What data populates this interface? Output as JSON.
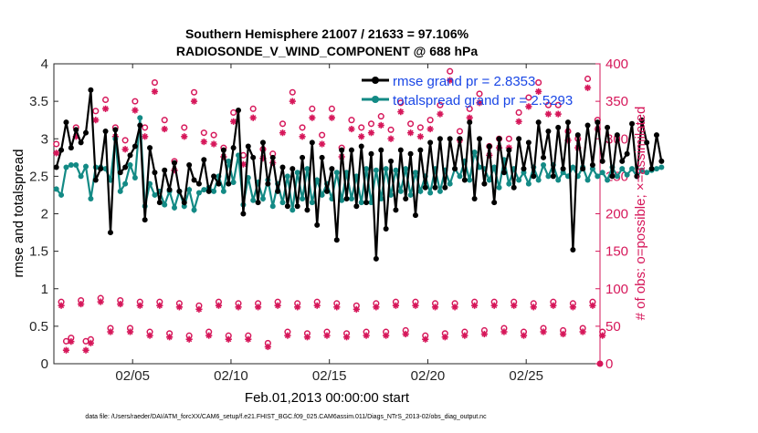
{
  "chart_data": {
    "type": "line",
    "title_line1": "Southern Hemisphere 21007 / 21633 = 97.106%",
    "title_line2": "RADIOSONDE_V_WIND_COMPONENT @ 688 hPa",
    "xlabel": "Feb.01,2013 00:00:00 start",
    "ylabel_left": "rmse and totalspread",
    "ylabel_right": "# of obs: o=possible; ×=assimilated",
    "footnote": "data file: /Users/raeder/DAI/ATM_forcXX/CAM6_setup/f.e21.FHIST_BGC.f09_025.CAM6assim.011/Diags_NTrS_2013-02/obs_diag_output.nc",
    "x_range_days": [
      1,
      28.75
    ],
    "x_ticks": [
      {
        "day": 5,
        "label": "02/05"
      },
      {
        "day": 10,
        "label": "02/10"
      },
      {
        "day": 15,
        "label": "02/15"
      },
      {
        "day": 20,
        "label": "02/20"
      },
      {
        "day": 25,
        "label": "02/25"
      }
    ],
    "y_left_range": [
      0,
      4
    ],
    "y_left_ticks": [
      "0",
      "0.5",
      "1",
      "1.5",
      "2",
      "2.5",
      "3",
      "3.5",
      "4"
    ],
    "y_right_range": [
      0,
      400
    ],
    "y_right_ticks": [
      "0",
      "50",
      "100",
      "150",
      "200",
      "250",
      "300",
      "350",
      "400"
    ],
    "legend": [
      {
        "label": "rmse grand pr = 2.8353",
        "color": "#000000"
      },
      {
        "label": "totalspread grand pr = 2.5293",
        "color": "#138a85"
      }
    ],
    "colors": {
      "rmse": "#000000",
      "spread": "#138a85",
      "obs": "#d6175a",
      "legend_text": "#1a47e6"
    },
    "series": [
      {
        "name": "rmse",
        "start_day": 1.125,
        "step_days": 0.25,
        "values": [
          2.62,
          2.85,
          3.22,
          2.88,
          3.12,
          2.95,
          3.08,
          3.65,
          2.45,
          2.6,
          3.1,
          1.75,
          3.12,
          2.55,
          2.62,
          2.78,
          2.9,
          3.18,
          1.92,
          2.88,
          2.55,
          2.15,
          2.58,
          2.32,
          2.68,
          2.3,
          2.15,
          2.65,
          2.45,
          2.4,
          2.72,
          2.3,
          2.5,
          2.4,
          2.85,
          2.4,
          2.88,
          3.38,
          2.0,
          2.9,
          2.75,
          2.15,
          2.95,
          2.4,
          2.75,
          2.3,
          2.62,
          2.1,
          2.6,
          2.1,
          2.75,
          2.05,
          2.95,
          1.85,
          2.75,
          2.3,
          2.6,
          1.65,
          2.85,
          2.2,
          2.85,
          2.1,
          2.9,
          2.15,
          2.8,
          1.4,
          2.85,
          1.8,
          2.7,
          2.05,
          2.85,
          2.2,
          2.8,
          1.98,
          2.85,
          2.35,
          2.95,
          2.35,
          3.0,
          2.35,
          3.0,
          2.6,
          3.0,
          2.45,
          3.22,
          2.2,
          3.0,
          2.4,
          2.9,
          2.15,
          3.0,
          2.55,
          2.85,
          2.35,
          3.0,
          2.6,
          2.95,
          2.5,
          3.22,
          2.75,
          3.1,
          2.5,
          3.15,
          2.6,
          3.22,
          1.52,
          3.05,
          2.6,
          3.18,
          2.65,
          3.22,
          2.7,
          3.15,
          2.5,
          3.05,
          2.7,
          2.8,
          3.2,
          2.5,
          3.25,
          2.95,
          2.6,
          3.05,
          2.7
        ]
      },
      {
        "name": "totalspread",
        "start_day": 1.125,
        "step_days": 0.25,
        "values": [
          2.33,
          2.25,
          2.62,
          2.65,
          2.65,
          2.5,
          2.63,
          2.2,
          2.62,
          2.62,
          2.6,
          2.45,
          3.0,
          2.3,
          2.4,
          2.65,
          2.48,
          3.28,
          2.1,
          2.4,
          2.25,
          2.3,
          2.12,
          2.3,
          2.08,
          2.3,
          2.1,
          2.32,
          2.05,
          2.28,
          2.32,
          2.35,
          2.3,
          2.5,
          2.3,
          2.7,
          2.42,
          2.78,
          2.12,
          2.48,
          2.18,
          2.42,
          2.2,
          2.45,
          2.1,
          2.4,
          2.15,
          2.5,
          2.05,
          2.55,
          2.2,
          2.6,
          2.15,
          2.45,
          2.25,
          2.4,
          2.2,
          2.55,
          2.18,
          2.55,
          2.2,
          2.5,
          2.15,
          2.6,
          2.15,
          2.58,
          2.2,
          2.6,
          2.25,
          2.58,
          2.3,
          2.6,
          2.25,
          2.55,
          2.3,
          2.5,
          2.28,
          2.6,
          2.3,
          2.58,
          2.4,
          2.6,
          2.5,
          2.7,
          2.45,
          2.82,
          2.62,
          2.6,
          2.45,
          2.62,
          2.35,
          2.72,
          2.4,
          2.6,
          2.45,
          2.55,
          2.4,
          2.62,
          2.45,
          2.65,
          2.5,
          2.65,
          2.45,
          2.55,
          2.5,
          2.62,
          2.5,
          2.62,
          2.45,
          2.6,
          2.5,
          2.55,
          2.45,
          2.62,
          2.5,
          2.6,
          2.52,
          2.6,
          2.5,
          2.58,
          2.55,
          2.58,
          2.6,
          2.62
        ]
      },
      {
        "name": "obs possible",
        "start_day": 1.125,
        "step_days": 0.5,
        "values": [
          293,
          30,
          315,
          30,
          337,
          352,
          315,
          298,
          350,
          315,
          375,
          325,
          270,
          315,
          362,
          308,
          305,
          288,
          335,
          278,
          340,
          286,
          280,
          320,
          362,
          315,
          340,
          305,
          340,
          288,
          325,
          315,
          320,
          330,
          312,
          348,
          320,
          315,
          325,
          345,
          390,
          310,
          340,
          360,
          290,
          300,
          300,
          335,
          355,
          375,
          345,
          345,
          310,
          300,
          380,
          325
        ]
      },
      {
        "name": "obs assimilated",
        "start_day": 1.375,
        "step_days": 0.5,
        "values": [
          80,
          32,
          82,
          30,
          85,
          45,
          82,
          45,
          80,
          40,
          80,
          38,
          78,
          35,
          75,
          40,
          80,
          35,
          78,
          35,
          78,
          25,
          80,
          40,
          78,
          38,
          80,
          40,
          78,
          38,
          75,
          40,
          78,
          40,
          80,
          42,
          80,
          35,
          78,
          38,
          78,
          40,
          80,
          42,
          80,
          45,
          80,
          40,
          78,
          45,
          80,
          42,
          78,
          45,
          80,
          40
        ]
      }
    ]
  }
}
